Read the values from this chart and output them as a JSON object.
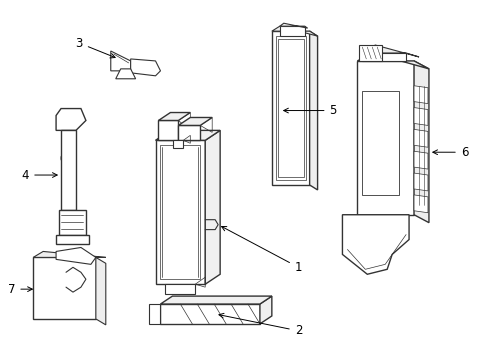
{
  "background_color": "#ffffff",
  "line_color": "#333333",
  "line_width": 0.8,
  "label_fontsize": 8.5,
  "fig_width": 4.9,
  "fig_height": 3.6,
  "dpi": 100
}
